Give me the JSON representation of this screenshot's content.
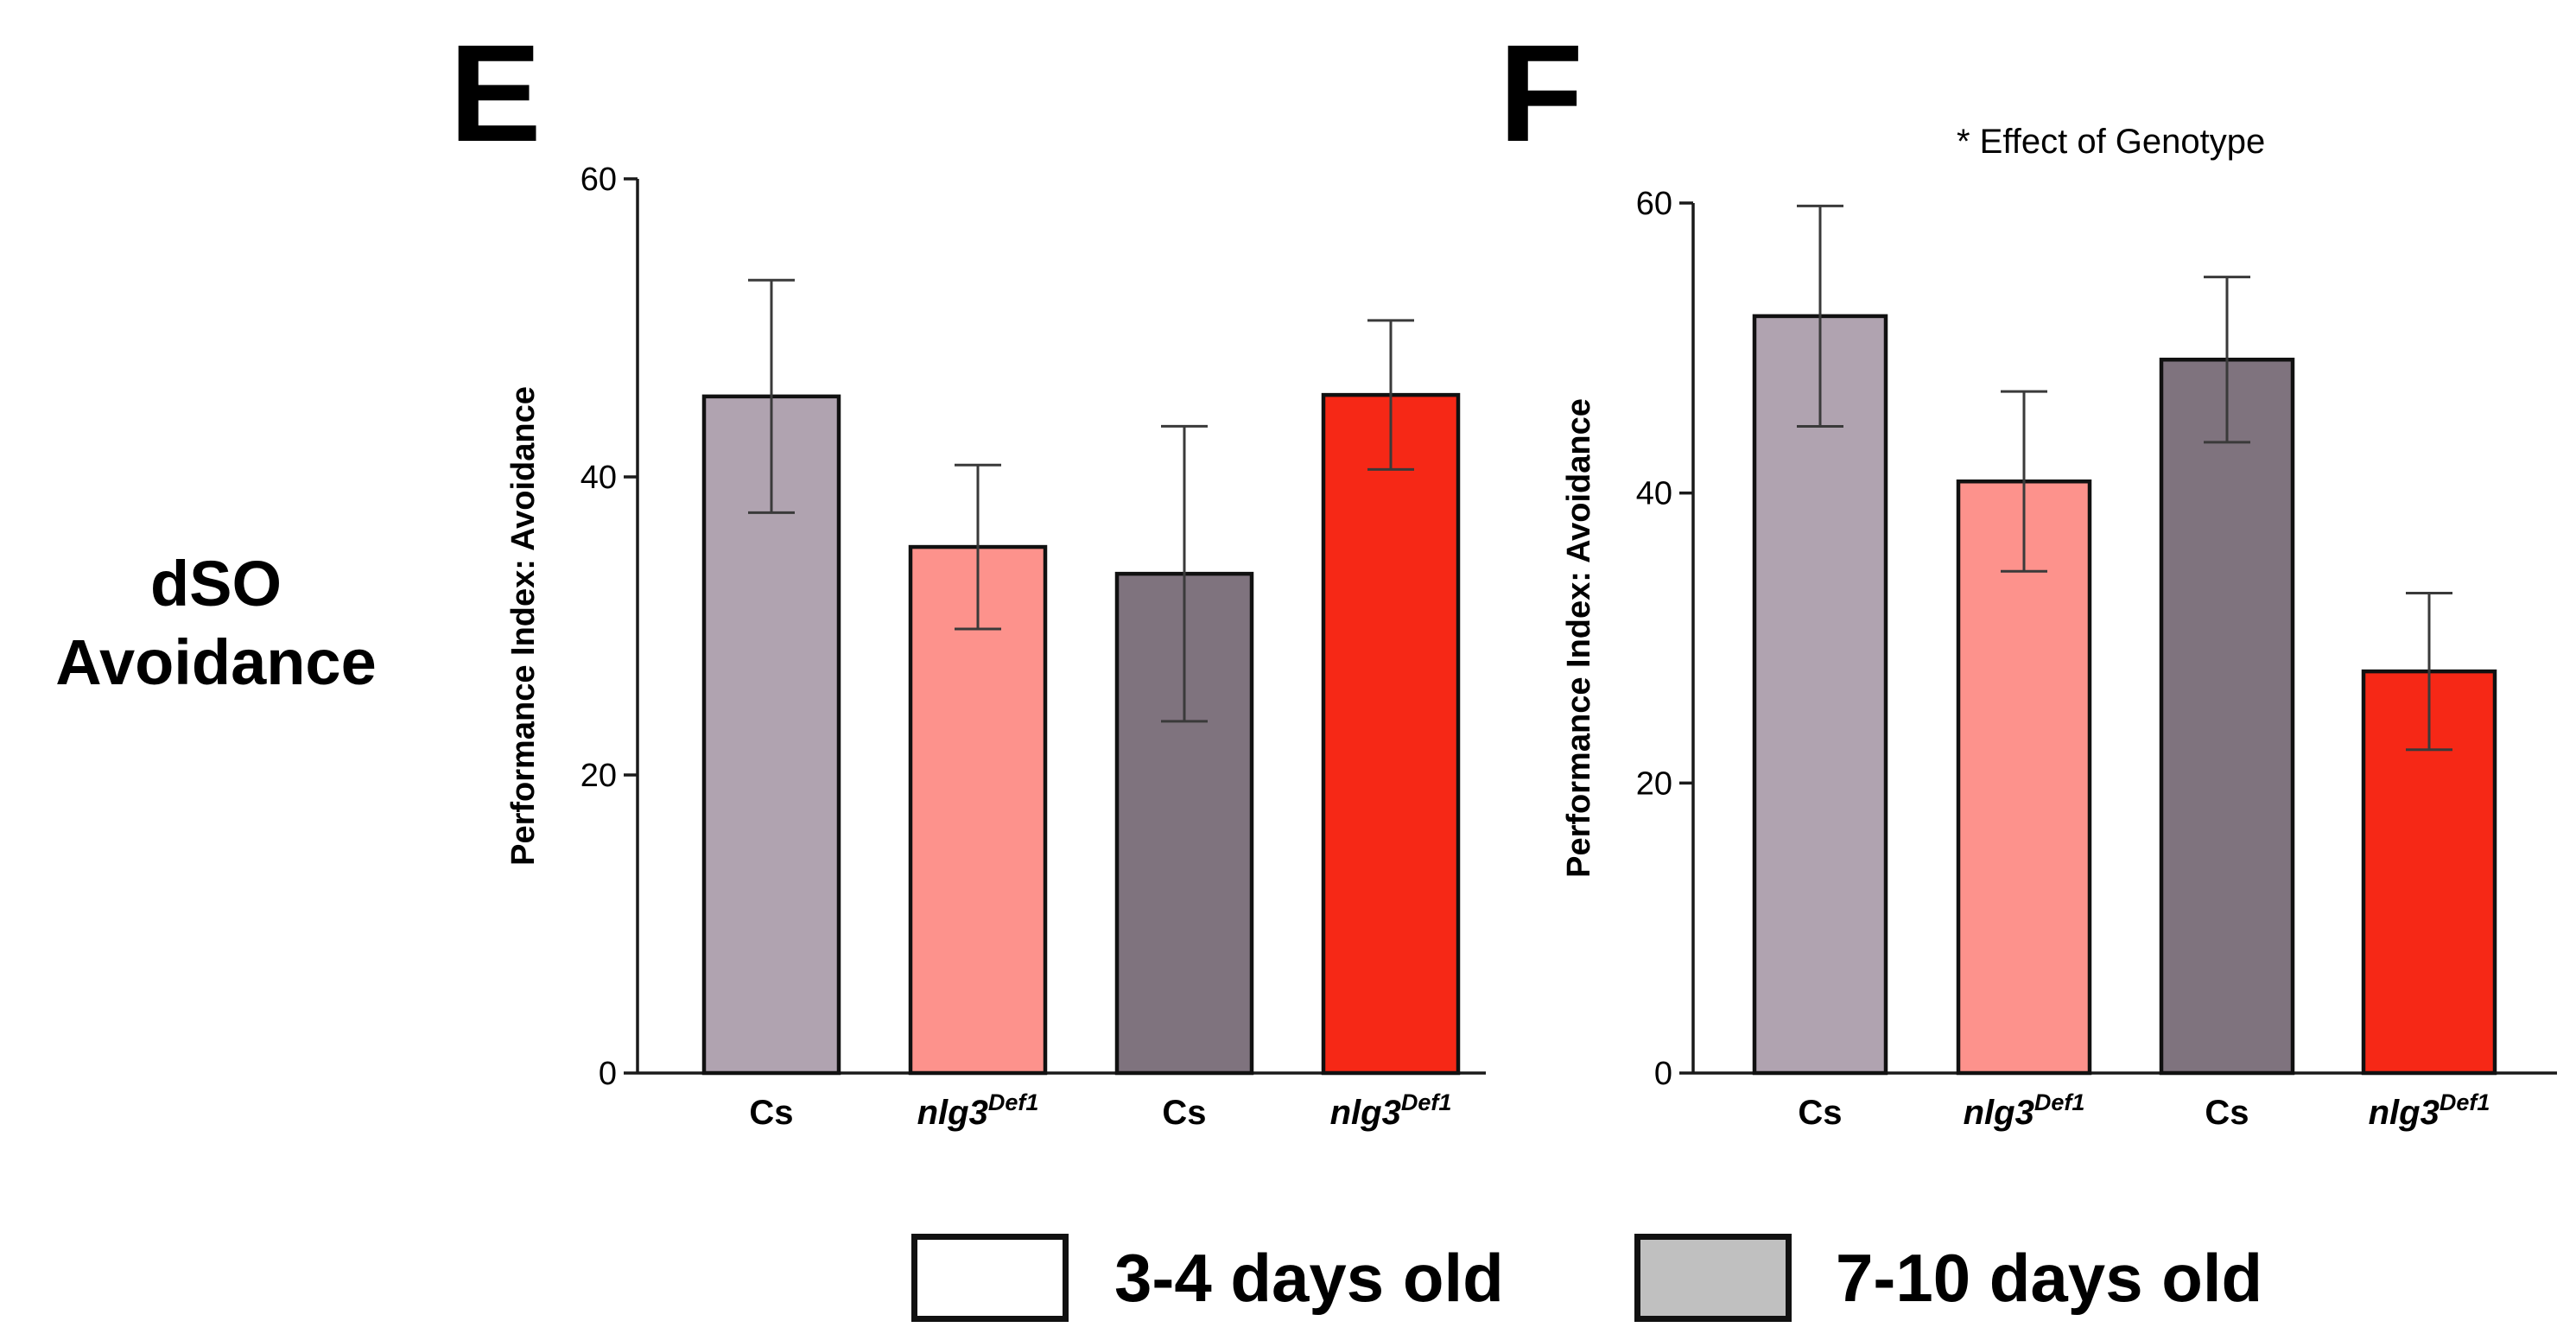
{
  "figure": {
    "row_label_line1": "dSO",
    "row_label_line2": "Avoidance",
    "panel_e_letter": "E",
    "panel_f_letter": "F",
    "panel_f_annotation": "* Effect of Genotype"
  },
  "legend": {
    "items": [
      {
        "label": "3-4 days old",
        "fill": "#ffffff"
      },
      {
        "label": "7-10 days old",
        "fill": "#c0c0c0"
      }
    ]
  },
  "colors": {
    "cs_young": "#b0a3b0",
    "nlg3_young": "#fd928c",
    "cs_old": "#7f737e",
    "nlg3_old": "#f62816",
    "axis": "#1a1a1a",
    "errorbar": "#3a3a3a"
  },
  "chart_data": [
    {
      "type": "bar",
      "panel": "E",
      "title": "",
      "xlabel": "",
      "ylabel": "Performance Index: Avoidance",
      "ylim": [
        0,
        60
      ],
      "yticks": [
        0,
        20,
        40,
        60
      ],
      "ytick_labels": [
        "0",
        "20",
        "40",
        "60"
      ],
      "categories": [
        {
          "base": "Cs",
          "sup": "",
          "italic": false
        },
        {
          "base": "nlg3",
          "sup": "Def1",
          "italic": true
        },
        {
          "base": "Cs",
          "sup": "",
          "italic": false
        },
        {
          "base": "nlg3",
          "sup": "Def1",
          "italic": true
        }
      ],
      "values": [
        45.4,
        35.3,
        33.5,
        45.5
      ],
      "errors": [
        7.8,
        5.5,
        9.9,
        5.0
      ],
      "fills": [
        "#b0a3b0",
        "#fd928c",
        "#7f737e",
        "#f62816"
      ],
      "groups": [
        "3-4 days old",
        "3-4 days old",
        "7-10 days old",
        "7-10 days old"
      ]
    },
    {
      "type": "bar",
      "panel": "F",
      "title": "",
      "xlabel": "",
      "ylabel": "Performance Index: Avoidance",
      "ylim": [
        0,
        60
      ],
      "yticks": [
        0,
        20,
        40,
        60
      ],
      "ytick_labels": [
        "0",
        "20",
        "40",
        "60"
      ],
      "categories": [
        {
          "base": "Cs",
          "sup": "",
          "italic": false
        },
        {
          "base": "nlg3",
          "sup": "Def1",
          "italic": true
        },
        {
          "base": "Cs",
          "sup": "",
          "italic": false
        },
        {
          "base": "nlg3",
          "sup": "Def1",
          "italic": true
        }
      ],
      "values": [
        52.2,
        40.8,
        49.2,
        27.7
      ],
      "errors": [
        7.6,
        6.2,
        5.7,
        5.4
      ],
      "fills": [
        "#b0a3b0",
        "#fd928c",
        "#7f737e",
        "#f62816"
      ],
      "groups": [
        "3-4 days old",
        "3-4 days old",
        "7-10 days old",
        "7-10 days old"
      ]
    }
  ]
}
